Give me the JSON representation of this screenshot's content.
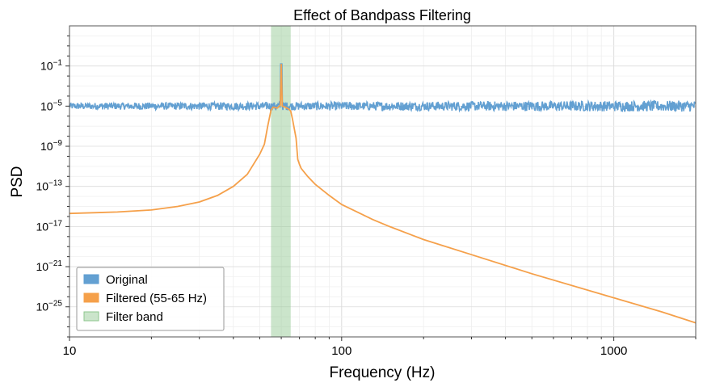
{
  "chart_data": {
    "type": "line",
    "title": "Effect of Bandpass Filtering",
    "xlabel": "Frequency (Hz)",
    "ylabel": "PSD",
    "x_scale": "log",
    "y_scale": "log",
    "xlim": [
      10,
      2000
    ],
    "ylim_log10": [
      -28,
      3
    ],
    "x_ticks": [
      {
        "value": 10,
        "label": "10"
      },
      {
        "value": 100,
        "label": "100"
      },
      {
        "value": 1000,
        "label": "1000"
      }
    ],
    "y_ticks": [
      {
        "exp": -1,
        "base": "10",
        "sup": "−1"
      },
      {
        "exp": -5,
        "base": "10",
        "sup": "−5"
      },
      {
        "exp": -9,
        "base": "10",
        "sup": "−9"
      },
      {
        "exp": -13,
        "base": "10",
        "sup": "−13"
      },
      {
        "exp": -17,
        "base": "10",
        "sup": "−17"
      },
      {
        "exp": -21,
        "base": "10",
        "sup": "−21"
      },
      {
        "exp": -25,
        "base": "10",
        "sup": "−25"
      }
    ],
    "grid": true,
    "legend_position": "bottom-left",
    "series": [
      {
        "name": "Original",
        "color": "#5b9bd0",
        "description": "noisy flat spectrum around 1e-5 with a 60 Hz line",
        "baseline_log10": -5.0,
        "noise_amplitude_log10": 0.55,
        "peak_hz": 60,
        "peak_log10": -0.8
      },
      {
        "name": "Filtered (55-65 Hz)",
        "color": "#f5a04a",
        "points": [
          [
            10,
            -15.7
          ],
          [
            15,
            -15.55
          ],
          [
            20,
            -15.35
          ],
          [
            25,
            -15.0
          ],
          [
            30,
            -14.55
          ],
          [
            35,
            -13.9
          ],
          [
            40,
            -13.0
          ],
          [
            45,
            -11.8
          ],
          [
            50,
            -9.8
          ],
          [
            52,
            -8.8
          ],
          [
            53.5,
            -7.0
          ],
          [
            55,
            -5.4
          ],
          [
            56,
            -5.1
          ],
          [
            58,
            -5.2
          ],
          [
            59.5,
            -4.9
          ],
          [
            60,
            -0.8
          ],
          [
            60.5,
            -5.0
          ],
          [
            62,
            -5.1
          ],
          [
            64,
            -5.3
          ],
          [
            65,
            -5.5
          ],
          [
            66,
            -6.3
          ],
          [
            68,
            -8.2
          ],
          [
            69,
            -10.3
          ],
          [
            70,
            -10.8
          ],
          [
            71,
            -11.2
          ],
          [
            75,
            -12.0
          ],
          [
            80,
            -12.8
          ],
          [
            90,
            -13.9
          ],
          [
            100,
            -14.8
          ],
          [
            130,
            -16.3
          ],
          [
            150,
            -17.0
          ],
          [
            200,
            -18.3
          ],
          [
            300,
            -19.8
          ],
          [
            500,
            -21.7
          ],
          [
            1000,
            -24.1
          ],
          [
            1500,
            -25.5
          ],
          [
            2000,
            -26.6
          ]
        ]
      }
    ],
    "shaded_band": {
      "name": "Filter band",
      "x_range": [
        55,
        65
      ],
      "color": "#8cc68c"
    }
  }
}
